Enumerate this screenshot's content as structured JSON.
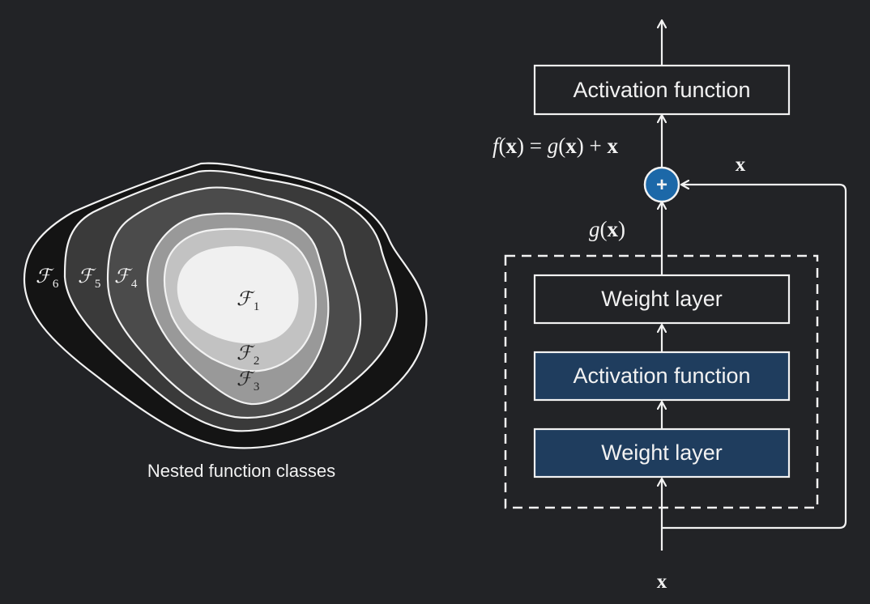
{
  "colors": {
    "background": "#222326",
    "stroke": "#f2f2f2",
    "dark_box": "#1f3d5e",
    "plus_circle": "#1c68a8",
    "region_6": "#141414",
    "region_5": "#3a3a3a",
    "region_4": "#4b4b4b",
    "region_3": "#999999",
    "region_2": "#c2c2c2",
    "region_1": "#f0f0f0"
  },
  "nested": {
    "caption": "Nested function classes",
    "classes": [
      {
        "symbol": "ℱ",
        "sub": "1"
      },
      {
        "symbol": "ℱ",
        "sub": "2"
      },
      {
        "symbol": "ℱ",
        "sub": "3"
      },
      {
        "symbol": "ℱ",
        "sub": "4"
      },
      {
        "symbol": "ℱ",
        "sub": "5"
      },
      {
        "symbol": "ℱ",
        "sub": "6"
      }
    ]
  },
  "residual": {
    "top_activation": "Activation function",
    "weight_top": "Weight layer",
    "activation_mid": "Activation function",
    "weight_bottom": "Weight layer",
    "plus": "+",
    "input_x": "x",
    "skip_x": "x",
    "gx": {
      "g": "g",
      "open": "(",
      "x": "x",
      "close": ")"
    },
    "fx": {
      "f": "f",
      "open1": "(",
      "x1": "x",
      "close1": ")",
      "eq": " = ",
      "g": "g",
      "open2": "(",
      "x2": "x",
      "close2": ")",
      "plus": " + ",
      "x3": "x"
    }
  }
}
